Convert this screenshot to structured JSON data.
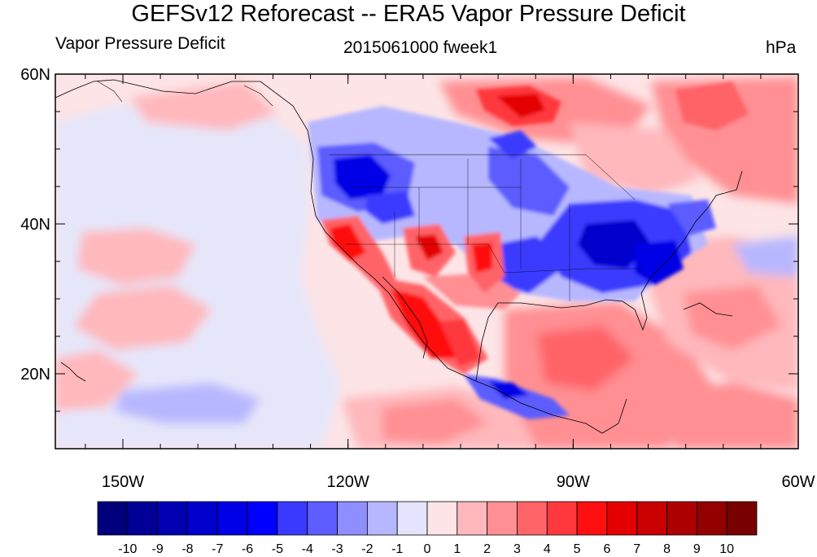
{
  "title": "GEFSv12 Reforecast -- ERA5 Vapor Pressure Deficit",
  "left_label": "Vapor Pressure Deficit",
  "center_label": "2015061000 fweek1",
  "right_label": "hPa",
  "map": {
    "projection": "cylindrical equidistant",
    "lon_range": [
      -159,
      -60
    ],
    "lat_range": [
      10,
      60
    ],
    "lon_ticks": [
      {
        "value": -150,
        "label": "150W"
      },
      {
        "value": -120,
        "label": "120W"
      },
      {
        "value": -90,
        "label": "90W"
      },
      {
        "value": -60,
        "label": "60W"
      }
    ],
    "lat_ticks": [
      {
        "value": 20,
        "label": "20N"
      },
      {
        "value": 40,
        "label": "40N"
      },
      {
        "value": 60,
        "label": "60N"
      }
    ],
    "background_color": "#fde4e6"
  },
  "colorbar": {
    "levels": [
      "-10",
      "-9",
      "-8",
      "-7",
      "-6",
      "-5",
      "-4",
      "-3",
      "-2",
      "-1",
      "0",
      "1",
      "2",
      "3",
      "4",
      "5",
      "6",
      "7",
      "8",
      "9",
      "10"
    ],
    "colors": [
      "#00007c",
      "#000096",
      "#0000b0",
      "#0000cc",
      "#0000e6",
      "#0000ff",
      "#3a3aff",
      "#5c5cff",
      "#8e8eff",
      "#b7b7ff",
      "#e4e4fe",
      "#fde4e6",
      "#ffb8bc",
      "#ff8f93",
      "#ff6468",
      "#ff383d",
      "#ff0f0f",
      "#e40000",
      "#c80000",
      "#ac0000",
      "#920000",
      "#790000"
    ]
  }
}
